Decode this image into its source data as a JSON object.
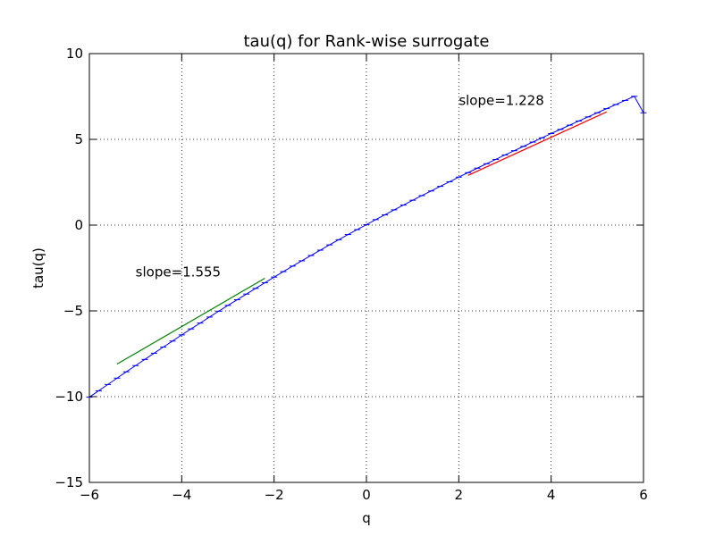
{
  "chart_data": {
    "type": "line",
    "title": "tau(q) for Rank-wise surrogate",
    "xlabel": "q",
    "ylabel": "tau(q)",
    "xlim": [
      -6,
      6
    ],
    "ylim": [
      -15,
      10
    ],
    "x_ticks": [
      -6,
      -4,
      -2,
      0,
      2,
      4,
      6
    ],
    "x_tick_labels": [
      "−6",
      "−4",
      "−2",
      "0",
      "2",
      "4",
      "6"
    ],
    "y_ticks": [
      -15,
      -10,
      -5,
      0,
      5,
      10
    ],
    "y_tick_labels": [
      "−15",
      "−10",
      "−5",
      "0",
      "5",
      "10"
    ],
    "grid": true,
    "series": [
      {
        "color": "#0000ff",
        "error_bars": true,
        "x": [
          -6.0,
          -5.8,
          -5.6,
          -5.4,
          -5.2,
          -5.0,
          -4.8,
          -4.6,
          -4.4,
          -4.2,
          -4.0,
          -3.8,
          -3.6,
          -3.4,
          -3.2,
          -3.0,
          -2.8,
          -2.6,
          -2.4,
          -2.2,
          -2.0,
          -1.8,
          -1.6,
          -1.4,
          -1.2,
          -1.0,
          -0.8,
          -0.6,
          -0.4,
          -0.2,
          0.0,
          0.2,
          0.4,
          0.6,
          0.8,
          1.0,
          1.2,
          1.4,
          1.6,
          1.8,
          2.0,
          2.2,
          2.4,
          2.6,
          2.8,
          3.0,
          3.2,
          3.4,
          3.6,
          3.8,
          4.0,
          4.2,
          4.4,
          4.6,
          4.8,
          5.0,
          5.2,
          5.4,
          5.6,
          5.8,
          6.0
        ],
        "y": [
          -10.03,
          -9.66,
          -9.29,
          -8.92,
          -8.55,
          -8.19,
          -7.83,
          -7.47,
          -7.11,
          -6.76,
          -6.4,
          -6.05,
          -5.71,
          -5.36,
          -5.02,
          -4.68,
          -4.35,
          -4.02,
          -3.69,
          -3.36,
          -3.03,
          -2.71,
          -2.39,
          -2.08,
          -1.77,
          -1.46,
          -1.15,
          -0.85,
          -0.55,
          -0.26,
          0.03,
          0.32,
          0.6,
          0.89,
          1.17,
          1.45,
          1.72,
          1.99,
          2.26,
          2.53,
          2.8,
          3.06,
          3.32,
          3.58,
          3.83,
          4.09,
          4.34,
          4.59,
          4.84,
          5.09,
          5.34,
          5.58,
          5.83,
          6.07,
          6.31,
          6.55,
          6.79,
          7.03,
          7.27,
          7.51,
          6.55
        ]
      }
    ],
    "fit_lines": [
      {
        "color": "#008000",
        "x": [
          -5.4,
          -2.2
        ],
        "y": [
          -8.1,
          -3.1
        ]
      },
      {
        "color": "#ff0000",
        "x": [
          2.2,
          5.2
        ],
        "y": [
          2.9,
          6.6
        ]
      }
    ],
    "annotations": [
      {
        "text": "slope=1.555",
        "x": -5.0,
        "y": -3.0
      },
      {
        "text": "slope=1.228",
        "x": 2.0,
        "y": 7.0
      }
    ]
  }
}
